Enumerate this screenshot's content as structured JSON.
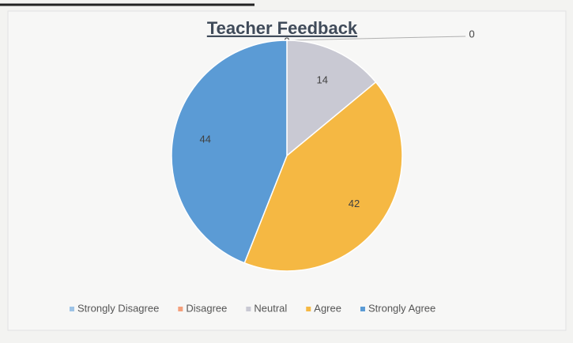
{
  "chart_data": {
    "type": "pie",
    "title": "Teacher Feedback",
    "categories": [
      "Strongly Disagree",
      "Disagree",
      "Neutral",
      "Agree",
      "Strongly Agree"
    ],
    "values": [
      0,
      0,
      14,
      42,
      44
    ],
    "colors": [
      "#9dc3e6",
      "#f4a07c",
      "#c9c9d3",
      "#f5b843",
      "#5b9bd5"
    ],
    "legend": "bottom"
  }
}
